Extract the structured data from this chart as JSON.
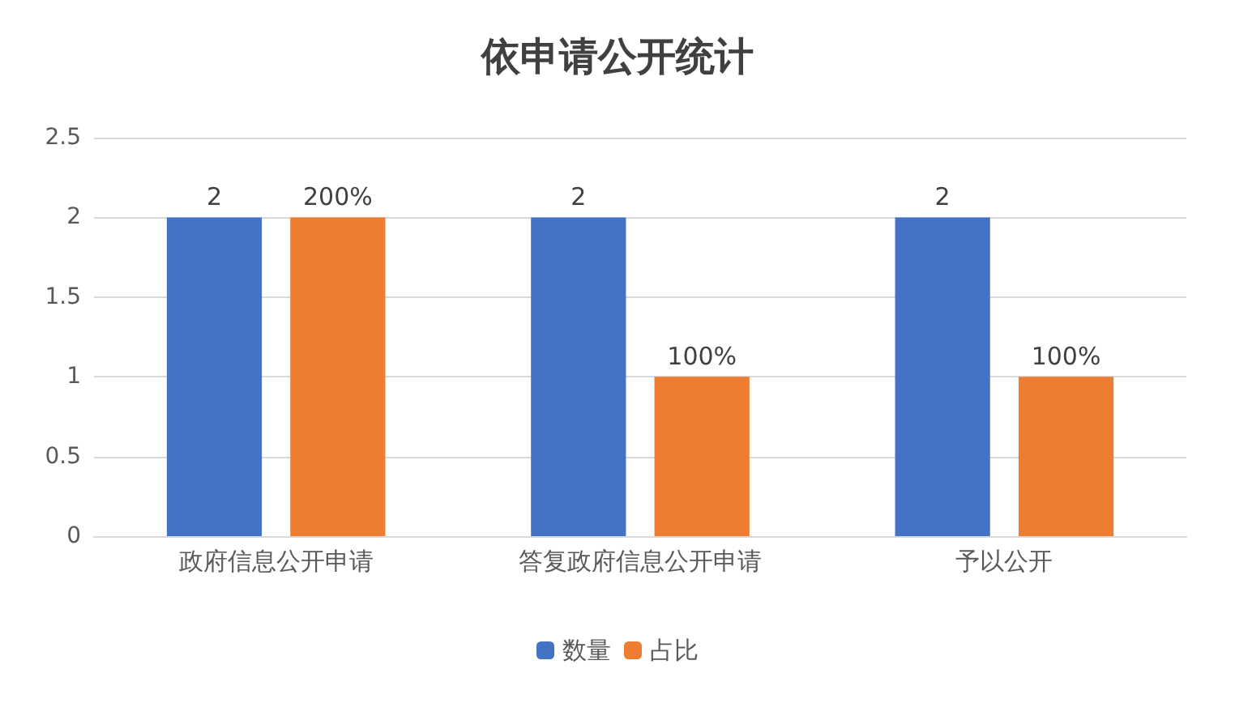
{
  "chart_data": {
    "type": "bar",
    "title": "依申请公开统计",
    "categories": [
      "政府信息公开申请",
      "答复政府信息公开申请",
      "予以公开"
    ],
    "series": [
      {
        "name": "数量",
        "color": "#4472c4",
        "values": [
          2,
          2,
          2
        ],
        "value_labels": [
          "2",
          "2",
          "2"
        ]
      },
      {
        "name": "占比",
        "color": "#ed7d31",
        "values": [
          2,
          1,
          1
        ],
        "value_labels": [
          "200%",
          "100%",
          "100%"
        ]
      }
    ],
    "ylim": [
      0,
      2.5
    ],
    "yticks": [
      0,
      0.5,
      1,
      1.5,
      2,
      2.5
    ],
    "grid": "y",
    "legend": "bottom"
  }
}
